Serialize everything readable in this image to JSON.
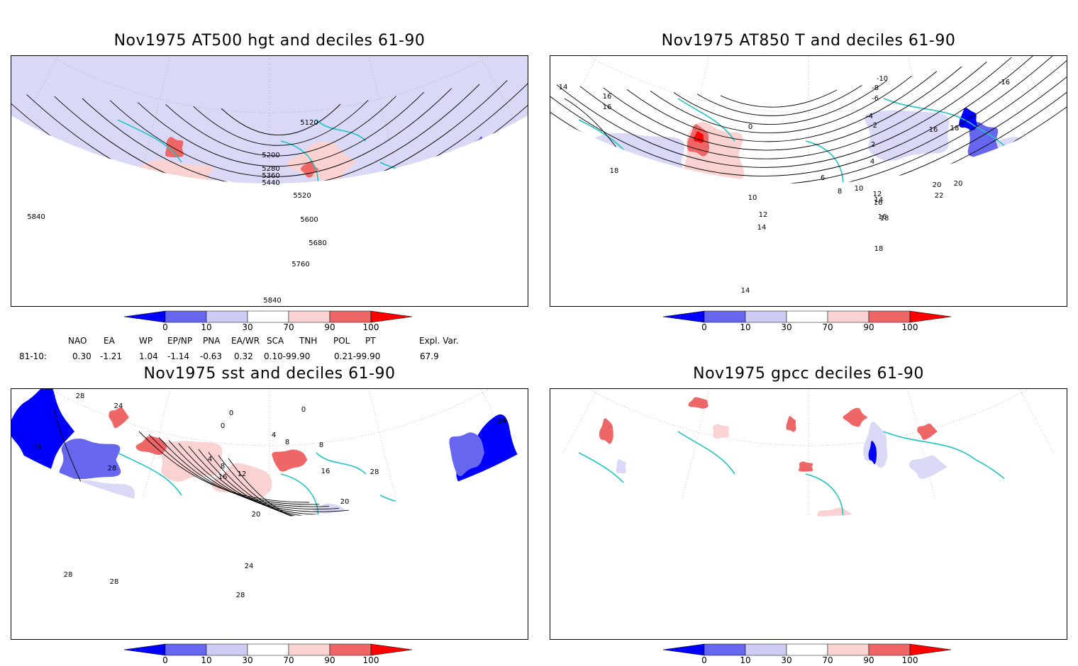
{
  "panels": [
    {
      "id": "p1",
      "title": "Nov1975 AT500 hgt and deciles 61-90",
      "contour_labels": [
        "5120",
        "5200",
        "5280",
        "5360",
        "5440",
        "5520",
        "5600",
        "5680",
        "5760",
        "5840",
        "5840",
        "5840"
      ]
    },
    {
      "id": "p2",
      "title": "Nov1975 AT850 T and deciles 61-90",
      "contour_labels": [
        "14",
        "16",
        "16",
        "18",
        "-10",
        "-8",
        "-6",
        "-4",
        "-2",
        "0",
        "2",
        "4",
        "6",
        "8",
        "10",
        "10",
        "12",
        "12",
        "14",
        "14",
        "16",
        "16",
        "16",
        "18",
        "18",
        "18",
        "20",
        "20",
        "22",
        "-16",
        "14"
      ]
    },
    {
      "id": "p3",
      "title": "Nov1975 sst and deciles 61-90",
      "contour_labels": [
        "28",
        "24",
        "24",
        "28",
        "0",
        "0",
        "4",
        "8",
        "12",
        "16",
        "20",
        "20",
        "24",
        "28",
        "28",
        "28",
        "0",
        "4",
        "8",
        "8",
        "16",
        "28",
        "24",
        "28"
      ]
    },
    {
      "id": "p4",
      "title": "Nov1975 gpcc deciles 61-90",
      "contour_labels": []
    }
  ],
  "colorbar": {
    "labels": [
      "0",
      "10",
      "30",
      "70",
      "90",
      "100"
    ],
    "colors": [
      "#0000ff",
      "#6666ee",
      "#ccccf5",
      "#ffffff",
      "#fad2d2",
      "#ee6666",
      "#ff0000"
    ]
  },
  "indices": {
    "headers": [
      "NAO",
      "EA",
      "WP",
      "EP/NP",
      "PNA",
      "EA/WR",
      "SCA",
      "TNH",
      "POL",
      "PT",
      "Expl. Var."
    ],
    "row_label": "81-10:",
    "values": [
      "0.30",
      "-1.21",
      "1.04",
      "-1.14",
      "-0.63",
      "0.32",
      "0.10-99.90",
      "0.21-99.90",
      "67.9"
    ]
  }
}
